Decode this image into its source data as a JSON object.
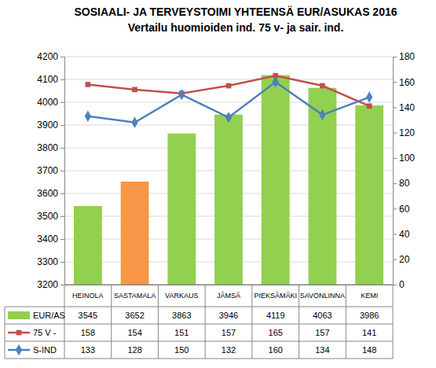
{
  "chart_data": {
    "type": "bar",
    "title": "SOSIAALI- JA TERVEYSTOIMI YHTEENSÄ EUR/ASUKAS  2016",
    "subtitle": "Vertailu huomioiden ind. 75 v-  ja sair. ind.",
    "categories": [
      "HEINOLA",
      "SASTAMALA",
      "VARKAUS",
      "JÄMSÄ",
      "PIEKSÄMÄKI",
      "SAVONLINNA",
      "KEMI"
    ],
    "series": [
      {
        "name": "EUR/AS",
        "type": "bar",
        "colors": [
          "#92d050",
          "#f79646",
          "#92d050",
          "#92d050",
          "#92d050",
          "#92d050",
          "#92d050"
        ],
        "values": [
          3545,
          3652,
          3863,
          3946,
          4119,
          4063,
          3986
        ]
      },
      {
        "name": "75 V -",
        "type": "line",
        "axis": "y2",
        "color": "#c0504d",
        "marker": "square",
        "values": [
          158,
          154,
          151,
          157,
          165,
          157,
          141
        ]
      },
      {
        "name": "S-IND",
        "type": "line",
        "axis": "y2",
        "color": "#4f81bd",
        "marker": "diamond",
        "values": [
          133,
          128,
          150,
          132,
          160,
          134,
          148
        ]
      }
    ],
    "ylim": [
      3200,
      4200
    ],
    "yticks": [
      3200,
      3300,
      3400,
      3500,
      3600,
      3700,
      3800,
      3900,
      4000,
      4100,
      4200
    ],
    "y2lim": [
      0,
      180
    ],
    "y2ticks": [
      0,
      20,
      40,
      60,
      80,
      100,
      120,
      140,
      160,
      180
    ],
    "grid": true,
    "legend": "bottom"
  }
}
